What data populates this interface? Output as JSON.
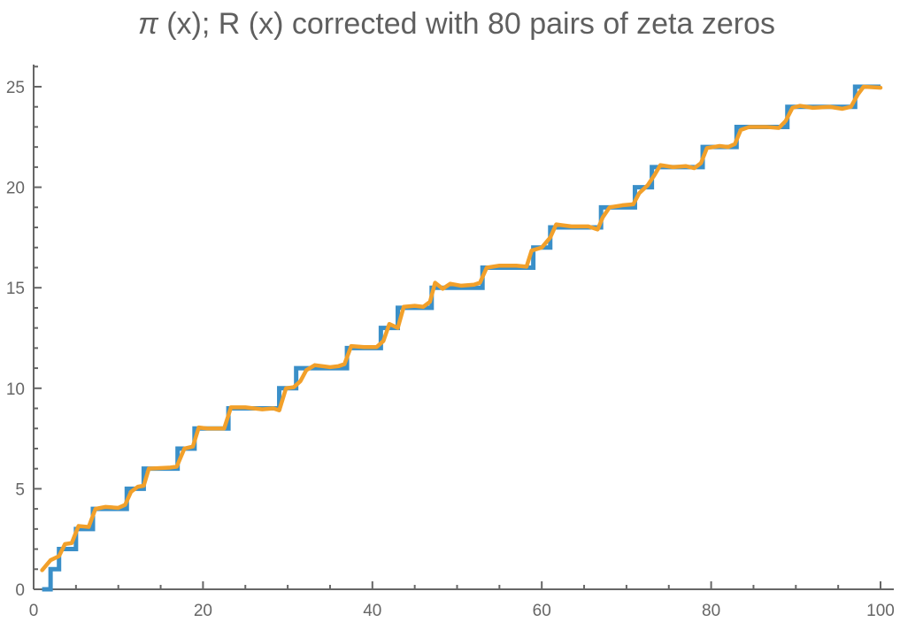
{
  "chart_data": {
    "type": "line",
    "title": "π (x); R (x) corrected with 80 pairs of zeta zeros",
    "title_parts": {
      "pi": "π",
      "rest": " (x); R (x) corrected with 80 pairs of zeta zeros"
    },
    "xlabel": "",
    "ylabel": "",
    "xlim": [
      0,
      100
    ],
    "ylim": [
      0,
      25
    ],
    "x_ticks": [
      "0",
      "20",
      "40",
      "60",
      "80",
      "100"
    ],
    "y_ticks": [
      "0",
      "5",
      "10",
      "15",
      "20",
      "25"
    ],
    "grid": false,
    "legend": "none",
    "colors": {
      "step": "#3a8fc8",
      "curve": "#f2a02a",
      "axis": "#666666",
      "title": "#5f5f5f"
    },
    "series": [
      {
        "style": "step",
        "x_range": [
          1,
          100
        ],
        "jumps_at": [
          2,
          3,
          5,
          7,
          11,
          13,
          17,
          19,
          23,
          29,
          31,
          37,
          41,
          43,
          47,
          53,
          59,
          61,
          67,
          71,
          73,
          79,
          83,
          89,
          97
        ]
      },
      {
        "style": "line",
        "points": [
          [
            1,
            0.95
          ],
          [
            2,
            1.45
          ],
          [
            3,
            1.65
          ],
          [
            3.7,
            2.25
          ],
          [
            4.5,
            2.3
          ],
          [
            5.3,
            3.15
          ],
          [
            6.5,
            3.1
          ],
          [
            7.3,
            4.0
          ],
          [
            8.5,
            4.1
          ],
          [
            10,
            4.05
          ],
          [
            10.8,
            4.2
          ],
          [
            11.5,
            4.85
          ],
          [
            12.3,
            5.1
          ],
          [
            13,
            5.15
          ],
          [
            13.6,
            6.0
          ],
          [
            16,
            6.05
          ],
          [
            16.9,
            6.1
          ],
          [
            17.8,
            7.0
          ],
          [
            18.8,
            7.1
          ],
          [
            19.5,
            8.05
          ],
          [
            20.5,
            8.0
          ],
          [
            22.5,
            8.0
          ],
          [
            23.3,
            9.05
          ],
          [
            25,
            9.05
          ],
          [
            27,
            8.95
          ],
          [
            28.3,
            9.0
          ],
          [
            29,
            8.9
          ],
          [
            29.8,
            10.0
          ],
          [
            30.7,
            10.05
          ],
          [
            31.5,
            10.35
          ],
          [
            32.2,
            10.9
          ],
          [
            33.2,
            11.15
          ],
          [
            35,
            11.05
          ],
          [
            36,
            11.1
          ],
          [
            36.7,
            11.2
          ],
          [
            37.5,
            12.1
          ],
          [
            39,
            12.05
          ],
          [
            40.5,
            12.05
          ],
          [
            41.3,
            12.35
          ],
          [
            42,
            13.2
          ],
          [
            43,
            13.0
          ],
          [
            43.7,
            14.05
          ],
          [
            45,
            14.1
          ],
          [
            46,
            14.05
          ],
          [
            46.8,
            14.3
          ],
          [
            47.4,
            15.25
          ],
          [
            48.3,
            14.95
          ],
          [
            49.2,
            15.2
          ],
          [
            50.5,
            15.1
          ],
          [
            52,
            15.15
          ],
          [
            52.7,
            15.25
          ],
          [
            53.5,
            16.0
          ],
          [
            55,
            16.1
          ],
          [
            57,
            16.1
          ],
          [
            58.2,
            16.05
          ],
          [
            58.8,
            16.85
          ],
          [
            60,
            17.0
          ],
          [
            61,
            17.5
          ],
          [
            61.7,
            18.15
          ],
          [
            63.5,
            18.05
          ],
          [
            65.5,
            18.05
          ],
          [
            66.6,
            17.9
          ],
          [
            67.2,
            18.5
          ],
          [
            68,
            19.0
          ],
          [
            69.5,
            19.1
          ],
          [
            70.8,
            19.15
          ],
          [
            71.5,
            19.7
          ],
          [
            72.5,
            20.1
          ],
          [
            73.3,
            20.6
          ],
          [
            74,
            21.1
          ],
          [
            75.5,
            21.0
          ],
          [
            77,
            21.05
          ],
          [
            78,
            20.95
          ],
          [
            78.8,
            21.2
          ],
          [
            79.5,
            21.95
          ],
          [
            81,
            22.05
          ],
          [
            82,
            22.0
          ],
          [
            82.8,
            22.15
          ],
          [
            83.5,
            22.85
          ],
          [
            84.5,
            23.0
          ],
          [
            86.5,
            23.0
          ],
          [
            88,
            22.95
          ],
          [
            88.8,
            23.3
          ],
          [
            89.6,
            23.95
          ],
          [
            90.5,
            24.05
          ],
          [
            92,
            23.95
          ],
          [
            94,
            24.0
          ],
          [
            95.5,
            23.9
          ],
          [
            96.5,
            24.0
          ],
          [
            97.3,
            24.6
          ],
          [
            98,
            25.0
          ],
          [
            100,
            24.95
          ]
        ]
      }
    ]
  }
}
